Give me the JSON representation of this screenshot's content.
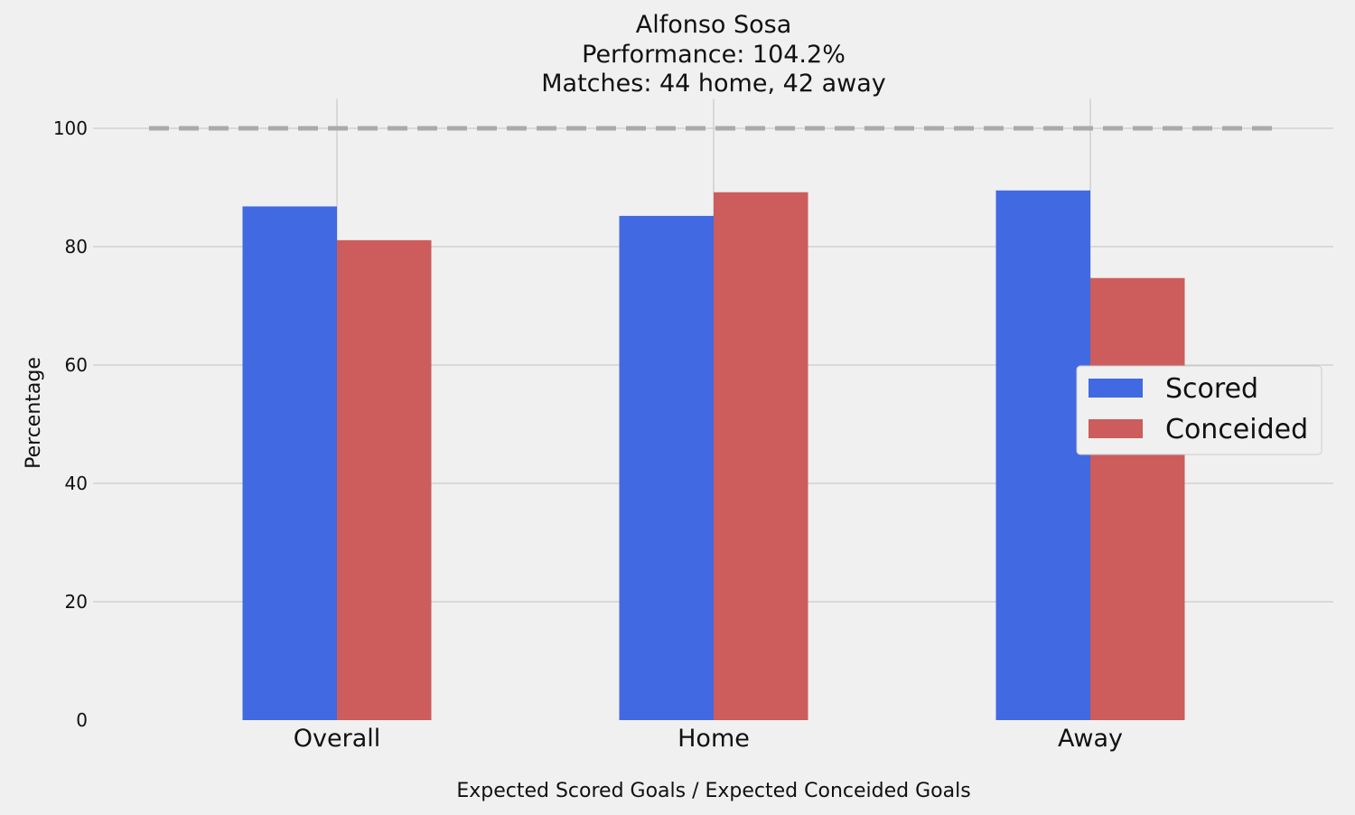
{
  "chart_data": {
    "type": "bar",
    "title_lines": [
      "Alfonso Sosa",
      "Performance: 104.2%",
      "Matches: 44 home, 42 away"
    ],
    "xlabel": "Expected Scored Goals / Expected Conceided Goals",
    "ylabel": "Percentage",
    "categories": [
      "Overall",
      "Home",
      "Away"
    ],
    "series": [
      {
        "name": "Scored",
        "color": "#4169e1",
        "values": [
          86.8,
          85.2,
          89.5
        ]
      },
      {
        "name": "Conceided",
        "color": "#cd5c5c",
        "values": [
          81.1,
          89.2,
          74.7
        ]
      }
    ],
    "ylim": [
      0,
      105
    ],
    "yticks": [
      0,
      20,
      40,
      60,
      80,
      100
    ],
    "reference_line": {
      "value": 100,
      "style": "dashed",
      "color": "#aaaaaa"
    },
    "grid": true,
    "legend_position": "center-right",
    "background": "#f0f0f0"
  }
}
